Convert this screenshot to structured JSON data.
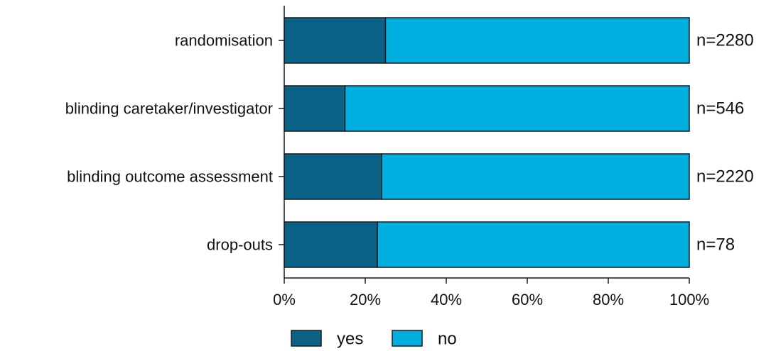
{
  "chart_data": {
    "type": "bar",
    "orientation": "horizontal",
    "stacked": true,
    "percent": true,
    "categories": [
      "randomisation",
      "blinding caretaker/investigator",
      "blinding outcome assessment",
      "drop-outs"
    ],
    "series": [
      {
        "name": "yes",
        "values": [
          25,
          15,
          24,
          23
        ]
      },
      {
        "name": "no",
        "values": [
          75,
          85,
          76,
          77
        ]
      }
    ],
    "n_labels": [
      "n=2280",
      "n=546",
      "n=2220",
      "n=78"
    ],
    "xlim": [
      0,
      100
    ],
    "x_ticks": [
      0,
      20,
      40,
      60,
      80,
      100
    ],
    "x_tick_labels": [
      "0%",
      "20%",
      "40%",
      "60%",
      "80%",
      "100%"
    ],
    "title": "",
    "xlabel": "",
    "ylabel": "",
    "grid": false,
    "legend_position": "bottom",
    "colors": {
      "yes": "#0b6186",
      "no": "#00afe0",
      "outline": "#1a1a1a"
    }
  }
}
